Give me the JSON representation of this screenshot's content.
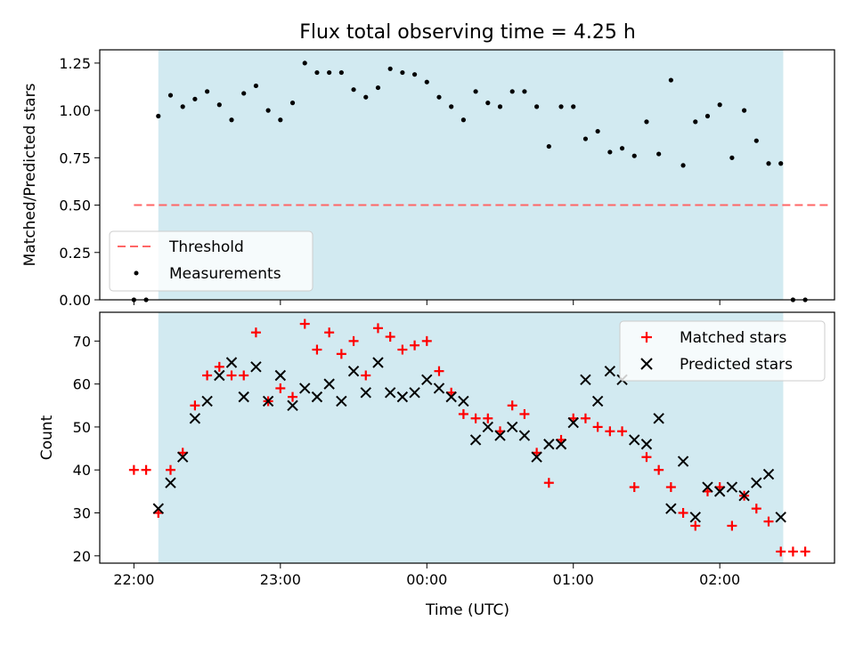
{
  "chart_data": [
    {
      "type": "scatter",
      "title": "Flux total observing time = 4.25 h",
      "xlabel": "",
      "ylabel": "Matched/Predicted stars",
      "xlim": [
        "21:46",
        "02:47"
      ],
      "ylim": [
        0.0,
        1.32
      ],
      "grid": false,
      "legend_position": "lower-left",
      "shaded_span": {
        "start": "22:10",
        "end": "02:26",
        "color": "#add8e6"
      },
      "x_ticks": [
        "22:00",
        "23:00",
        "00:00",
        "01:00",
        "02:00"
      ],
      "y_ticks": [
        "0.00",
        "0.25",
        "0.50",
        "0.75",
        "1.00",
        "1.25"
      ],
      "threshold": {
        "name": "Threshold",
        "value": 0.5,
        "x_start": "22:00",
        "x_end": "02:45",
        "color": "#ff6666"
      },
      "series": [
        {
          "name": "Measurements",
          "color": "#000000",
          "points": [
            [
              "22:00",
              0.0
            ],
            [
              "22:05",
              0.0
            ],
            [
              "22:10",
              0.97
            ],
            [
              "22:15",
              1.08
            ],
            [
              "22:20",
              1.02
            ],
            [
              "22:25",
              1.06
            ],
            [
              "22:30",
              1.1
            ],
            [
              "22:35",
              1.03
            ],
            [
              "22:40",
              0.95
            ],
            [
              "22:45",
              1.09
            ],
            [
              "22:50",
              1.13
            ],
            [
              "22:55",
              1.0
            ],
            [
              "23:00",
              0.95
            ],
            [
              "23:05",
              1.04
            ],
            [
              "23:10",
              1.25
            ],
            [
              "23:15",
              1.2
            ],
            [
              "23:20",
              1.2
            ],
            [
              "23:25",
              1.2
            ],
            [
              "23:30",
              1.11
            ],
            [
              "23:35",
              1.07
            ],
            [
              "23:40",
              1.12
            ],
            [
              "23:45",
              1.22
            ],
            [
              "23:50",
              1.2
            ],
            [
              "23:55",
              1.19
            ],
            [
              "00:00",
              1.15
            ],
            [
              "00:05",
              1.07
            ],
            [
              "00:10",
              1.02
            ],
            [
              "00:15",
              0.95
            ],
            [
              "00:20",
              1.1
            ],
            [
              "00:25",
              1.04
            ],
            [
              "00:30",
              1.02
            ],
            [
              "00:35",
              1.1
            ],
            [
              "00:40",
              1.1
            ],
            [
              "00:45",
              1.02
            ],
            [
              "00:50",
              0.81
            ],
            [
              "00:55",
              1.02
            ],
            [
              "01:00",
              1.02
            ],
            [
              "01:05",
              0.85
            ],
            [
              "01:10",
              0.89
            ],
            [
              "01:15",
              0.78
            ],
            [
              "01:20",
              0.8
            ],
            [
              "01:25",
              0.76
            ],
            [
              "01:30",
              0.94
            ],
            [
              "01:35",
              0.77
            ],
            [
              "01:40",
              1.16
            ],
            [
              "01:45",
              0.71
            ],
            [
              "01:50",
              0.94
            ],
            [
              "01:55",
              0.97
            ],
            [
              "02:00",
              1.03
            ],
            [
              "02:05",
              0.75
            ],
            [
              "02:10",
              1.0
            ],
            [
              "02:15",
              0.84
            ],
            [
              "02:20",
              0.72
            ],
            [
              "02:25",
              0.72
            ],
            [
              "02:30",
              0.0
            ],
            [
              "02:35",
              0.0
            ]
          ]
        }
      ]
    },
    {
      "type": "scatter",
      "title": "",
      "xlabel": "Time (UTC)",
      "ylabel": "Count",
      "xlim": [
        "21:46",
        "02:47"
      ],
      "ylim": [
        18.3,
        76.7
      ],
      "grid": false,
      "legend_position": "upper-right",
      "shaded_span": {
        "start": "22:10",
        "end": "02:26",
        "color": "#add8e6"
      },
      "x_ticks": [
        "22:00",
        "23:00",
        "00:00",
        "01:00",
        "02:00"
      ],
      "y_ticks": [
        "20",
        "30",
        "40",
        "50",
        "60",
        "70"
      ],
      "series": [
        {
          "name": "Matched stars",
          "color": "#ff0000",
          "marker": "+",
          "points": [
            [
              "22:00",
              40
            ],
            [
              "22:05",
              40
            ],
            [
              "22:10",
              30
            ],
            [
              "22:15",
              40
            ],
            [
              "22:20",
              44
            ],
            [
              "22:25",
              55
            ],
            [
              "22:30",
              62
            ],
            [
              "22:35",
              64
            ],
            [
              "22:40",
              62
            ],
            [
              "22:45",
              62
            ],
            [
              "22:50",
              72
            ],
            [
              "22:55",
              56
            ],
            [
              "23:00",
              59
            ],
            [
              "23:05",
              57
            ],
            [
              "23:10",
              74
            ],
            [
              "23:15",
              68
            ],
            [
              "23:20",
              72
            ],
            [
              "23:25",
              67
            ],
            [
              "23:30",
              70
            ],
            [
              "23:35",
              62
            ],
            [
              "23:40",
              73
            ],
            [
              "23:45",
              71
            ],
            [
              "23:50",
              68
            ],
            [
              "23:55",
              69
            ],
            [
              "00:00",
              70
            ],
            [
              "00:05",
              63
            ],
            [
              "00:10",
              58
            ],
            [
              "00:15",
              53
            ],
            [
              "00:20",
              52
            ],
            [
              "00:25",
              52
            ],
            [
              "00:30",
              49
            ],
            [
              "00:35",
              55
            ],
            [
              "00:40",
              53
            ],
            [
              "00:45",
              44
            ],
            [
              "00:50",
              37
            ],
            [
              "00:55",
              47
            ],
            [
              "01:00",
              52
            ],
            [
              "01:05",
              52
            ],
            [
              "01:10",
              50
            ],
            [
              "01:15",
              49
            ],
            [
              "01:20",
              49
            ],
            [
              "01:25",
              36
            ],
            [
              "01:30",
              43
            ],
            [
              "01:35",
              40
            ],
            [
              "01:40",
              36
            ],
            [
              "01:45",
              30
            ],
            [
              "01:50",
              27
            ],
            [
              "01:55",
              35
            ],
            [
              "02:00",
              36
            ],
            [
              "02:05",
              27
            ],
            [
              "02:10",
              34
            ],
            [
              "02:15",
              31
            ],
            [
              "02:20",
              28
            ],
            [
              "02:25",
              21
            ],
            [
              "02:30",
              21
            ],
            [
              "02:35",
              21
            ]
          ]
        },
        {
          "name": "Predicted stars",
          "color": "#000000",
          "marker": "x",
          "points": [
            [
              "22:10",
              31
            ],
            [
              "22:15",
              37
            ],
            [
              "22:20",
              43
            ],
            [
              "22:25",
              52
            ],
            [
              "22:30",
              56
            ],
            [
              "22:35",
              62
            ],
            [
              "22:40",
              65
            ],
            [
              "22:45",
              57
            ],
            [
              "22:50",
              64
            ],
            [
              "22:55",
              56
            ],
            [
              "23:00",
              62
            ],
            [
              "23:05",
              55
            ],
            [
              "23:10",
              59
            ],
            [
              "23:15",
              57
            ],
            [
              "23:20",
              60
            ],
            [
              "23:25",
              56
            ],
            [
              "23:30",
              63
            ],
            [
              "23:35",
              58
            ],
            [
              "23:40",
              65
            ],
            [
              "23:45",
              58
            ],
            [
              "23:50",
              57
            ],
            [
              "23:55",
              58
            ],
            [
              "00:00",
              61
            ],
            [
              "00:05",
              59
            ],
            [
              "00:10",
              57
            ],
            [
              "00:15",
              56
            ],
            [
              "00:20",
              47
            ],
            [
              "00:25",
              50
            ],
            [
              "00:30",
              48
            ],
            [
              "00:35",
              50
            ],
            [
              "00:40",
              48
            ],
            [
              "00:45",
              43
            ],
            [
              "00:50",
              46
            ],
            [
              "00:55",
              46
            ],
            [
              "01:00",
              51
            ],
            [
              "01:05",
              61
            ],
            [
              "01:10",
              56
            ],
            [
              "01:15",
              63
            ],
            [
              "01:20",
              61
            ],
            [
              "01:25",
              47
            ],
            [
              "01:30",
              46
            ],
            [
              "01:35",
              52
            ],
            [
              "01:40",
              31
            ],
            [
              "01:45",
              42
            ],
            [
              "01:50",
              29
            ],
            [
              "01:55",
              36
            ],
            [
              "02:00",
              35
            ],
            [
              "02:05",
              36
            ],
            [
              "02:10",
              34
            ],
            [
              "02:15",
              37
            ],
            [
              "02:20",
              39
            ],
            [
              "02:25",
              29
            ]
          ]
        }
      ]
    }
  ]
}
